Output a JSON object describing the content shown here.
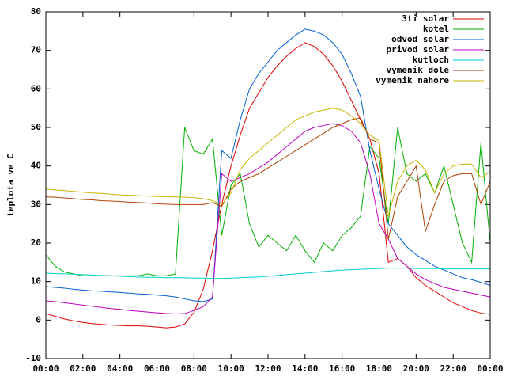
{
  "chart_data": {
    "type": "line",
    "y_label": "teplota ve C",
    "x": [
      0,
      0.5,
      1,
      1.5,
      2,
      2.5,
      3,
      3.5,
      4,
      4.5,
      5,
      5.5,
      6,
      6.5,
      7,
      7.5,
      8,
      8.5,
      9,
      9.5,
      10,
      10.5,
      11,
      11.5,
      12,
      12.5,
      13,
      13.5,
      14,
      14.5,
      15,
      15.5,
      16,
      16.5,
      17,
      17.5,
      18,
      18.5,
      19,
      19.5,
      20,
      20.5,
      21,
      21.5,
      22,
      22.5,
      23,
      23.5,
      24
    ],
    "xlim": [
      0,
      24
    ],
    "xticks": [
      {
        "value": 0,
        "label": "00:00"
      },
      {
        "value": 2,
        "label": "02:00"
      },
      {
        "value": 4,
        "label": "04:00"
      },
      {
        "value": 6,
        "label": "06:00"
      },
      {
        "value": 8,
        "label": "08:00"
      },
      {
        "value": 10,
        "label": "10:00"
      },
      {
        "value": 12,
        "label": "12:00"
      },
      {
        "value": 14,
        "label": "14:00"
      },
      {
        "value": 16,
        "label": "16:00"
      },
      {
        "value": 18,
        "label": "18:00"
      },
      {
        "value": 20,
        "label": "20:00"
      },
      {
        "value": 22,
        "label": "22:00"
      },
      {
        "value": 24,
        "label": "00:00"
      }
    ],
    "ylim": [
      -10,
      80
    ],
    "yticks": [
      -10,
      0,
      10,
      20,
      30,
      40,
      50,
      60,
      70,
      80
    ],
    "legend": "top-right",
    "series": [
      {
        "name": "3ti solar",
        "color": "#e00000",
        "values": [
          1.7,
          1,
          0.3,
          -0.2,
          -0.6,
          -0.9,
          -1.1,
          -1.3,
          -1.4,
          -1.5,
          -1.5,
          -1.6,
          -1.8,
          -2,
          -1.8,
          -1,
          2,
          8,
          18,
          30,
          40,
          48,
          55,
          59,
          63,
          66,
          68.5,
          70.5,
          72,
          71,
          69,
          66,
          62,
          57,
          52,
          47,
          38,
          15,
          16,
          14,
          11,
          9,
          7.5,
          6,
          4.5,
          3.5,
          2.5,
          1.8,
          1.5
        ]
      },
      {
        "name": "kotel",
        "color": "#00b000",
        "values": [
          17,
          14,
          12.5,
          12,
          11.5,
          11.5,
          11.5,
          11.5,
          11.5,
          11.5,
          11.5,
          12,
          11.5,
          11.5,
          12,
          50,
          44,
          43,
          47,
          22,
          35,
          38,
          25,
          19,
          22,
          20,
          18,
          22,
          18,
          15,
          20,
          18,
          22,
          24,
          27,
          45,
          42,
          25,
          50,
          38,
          36,
          38,
          33,
          40,
          30,
          20,
          15,
          46,
          20
        ]
      },
      {
        "name": "odvod solar",
        "color": "#0060d0",
        "values": [
          8.7,
          8.5,
          8.3,
          8,
          7.8,
          7.6,
          7.5,
          7.3,
          7.2,
          7,
          6.8,
          6.7,
          6.5,
          6.3,
          6,
          5.5,
          5,
          4.8,
          5.5,
          44,
          42,
          52,
          60,
          64,
          67,
          70,
          72,
          74,
          75.5,
          75,
          74,
          72,
          69,
          64,
          58,
          44,
          34,
          25,
          22,
          19,
          17,
          15.5,
          14,
          13,
          12,
          11,
          10.5,
          9.8,
          9
        ]
      },
      {
        "name": "privod solar",
        "color": "#c000c0",
        "values": [
          5,
          4.8,
          4.5,
          4.2,
          3.9,
          3.6,
          3.3,
          3,
          2.8,
          2.5,
          2.3,
          2.1,
          1.9,
          1.7,
          1.6,
          1.7,
          2.5,
          3.5,
          6,
          38,
          36,
          37,
          38,
          39.5,
          41,
          43,
          45,
          47,
          49,
          50,
          50.5,
          51,
          50.5,
          49,
          46,
          38,
          25,
          21,
          16,
          14,
          12,
          10.5,
          9.5,
          8.5,
          8,
          7.5,
          7,
          6.5,
          6
        ]
      },
      {
        "name": "kutloch",
        "color": "#00d0d0",
        "values": [
          12.2,
          12.1,
          12,
          11.9,
          11.8,
          11.7,
          11.6,
          11.5,
          11.4,
          11.3,
          11.2,
          11.1,
          11.1,
          11,
          11,
          11,
          10.9,
          10.9,
          10.8,
          10.8,
          10.9,
          11,
          11.1,
          11.2,
          11.4,
          11.6,
          11.8,
          12,
          12.2,
          12.4,
          12.6,
          12.8,
          13,
          13.1,
          13.2,
          13.3,
          13.4,
          13.5,
          13.5,
          13.5,
          13.4,
          13.4,
          13.4,
          13.3,
          13.3,
          13.3,
          13.3,
          13.3,
          13.3
        ]
      },
      {
        "name": "vymenik dole",
        "color": "#b04000",
        "values": [
          32,
          31.9,
          31.7,
          31.5,
          31.3,
          31.2,
          31,
          30.9,
          30.8,
          30.6,
          30.5,
          30.4,
          30.2,
          30.1,
          30,
          30,
          30,
          30,
          30.5,
          29.5,
          34,
          36,
          37,
          38,
          39.5,
          41,
          42.5,
          44,
          45.5,
          47,
          48.5,
          50,
          51,
          52,
          52.5,
          47,
          46,
          21,
          32,
          36,
          40,
          23,
          30,
          36,
          37.5,
          38,
          38,
          30,
          36
        ]
      },
      {
        "name": "vymenik nahore",
        "color": "#c8b400",
        "values": [
          34,
          33.8,
          33.6,
          33.4,
          33.2,
          33,
          32.9,
          32.7,
          32.5,
          32.4,
          32.3,
          32.2,
          32.1,
          32,
          32,
          31.9,
          31.8,
          31.5,
          31,
          30,
          33,
          39,
          42,
          44,
          46,
          48,
          50,
          52,
          53,
          54,
          54.5,
          55,
          54.5,
          53,
          51,
          48,
          46.5,
          27,
          36,
          40,
          41.5,
          39,
          33,
          38,
          40,
          40.5,
          40.5,
          37,
          38.5
        ]
      }
    ]
  }
}
